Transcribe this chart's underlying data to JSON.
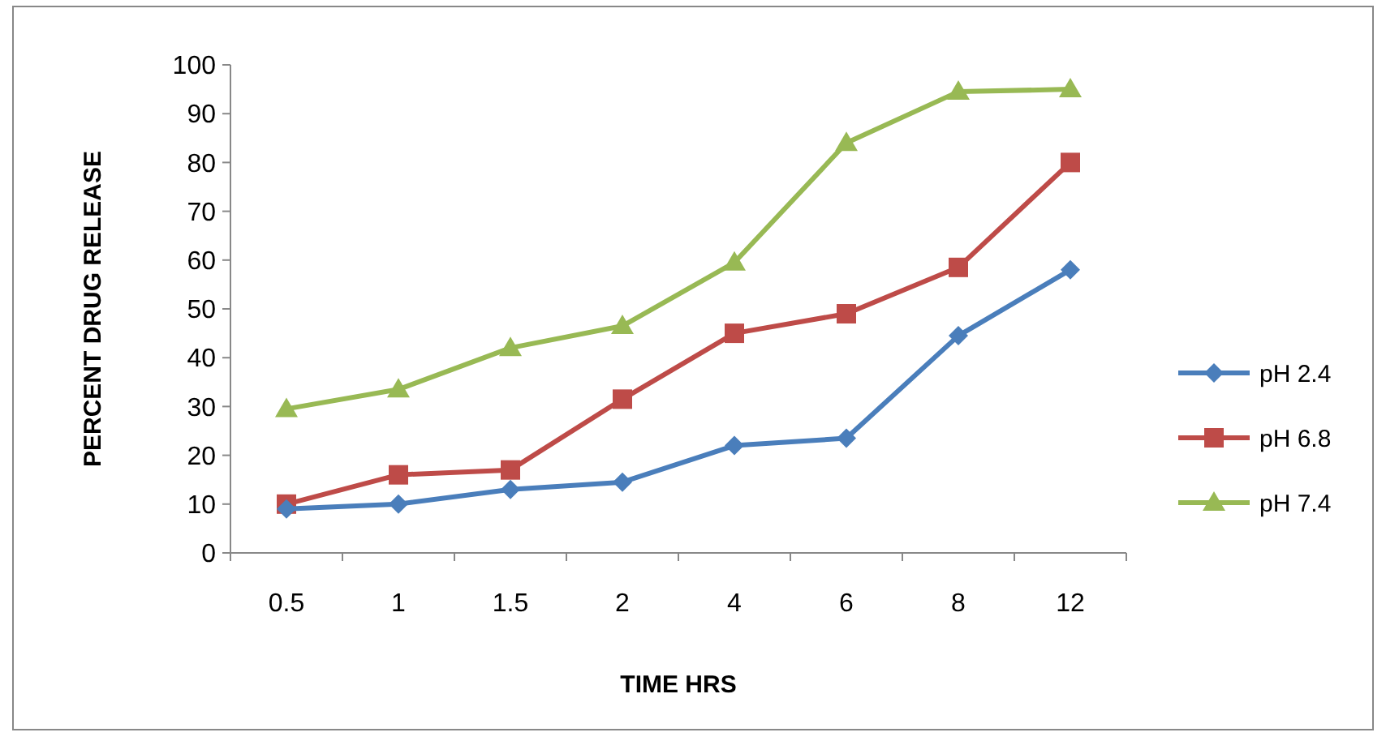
{
  "chart_data": {
    "type": "line",
    "xlabel": "TIME HRS",
    "ylabel": "PERCENT DRUG RELEASE",
    "categories": [
      "0.5",
      "1",
      "1.5",
      "2",
      "4",
      "6",
      "8",
      "12"
    ],
    "ylim": [
      0,
      100
    ],
    "yticks": [
      0,
      10,
      20,
      30,
      40,
      50,
      60,
      70,
      80,
      90,
      100
    ],
    "legend": "right",
    "series": [
      {
        "name": "pH 2.4",
        "color": "#4a7ebb",
        "marker": "diamond",
        "values": [
          9,
          10,
          13,
          14.5,
          22,
          23.5,
          44.5,
          58
        ]
      },
      {
        "name": "pH 6.8",
        "color": "#be4b48",
        "marker": "square",
        "values": [
          10,
          16,
          17,
          31.5,
          45,
          49,
          58.5,
          80
        ]
      },
      {
        "name": "pH 7.4",
        "color": "#98b954",
        "marker": "triangle",
        "values": [
          29.5,
          33.5,
          42,
          46.5,
          59.5,
          84,
          94.5,
          95
        ]
      }
    ]
  }
}
